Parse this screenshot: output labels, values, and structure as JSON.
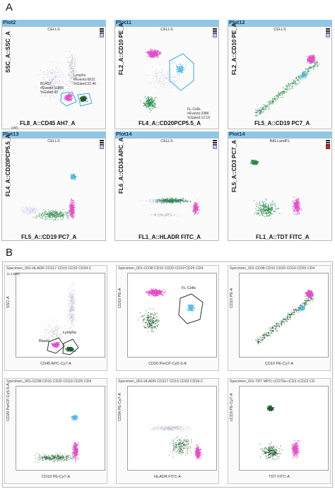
{
  "figure": {
    "panel_a_letter": "A",
    "panel_b_letter": "B"
  },
  "panel_a": {
    "plots": [
      {
        "title": "Plot2",
        "subtitle": "CELLS",
        "xlabel": "FL8_A::CD45 AH7_A",
        "ylabel": "SSC_A::SSC_A",
        "annotations": {
          "blast": "BLAST",
          "blast_events": "#Events:11856",
          "blast_gated": "%Gated:42",
          "lymphs": "Lymphs",
          "lymphs_events": "#Events:6622",
          "lymphs_gated": "%Gated:22.46",
          "ytick": "(xM)"
        }
      },
      {
        "title": "Plot11",
        "subtitle": "CELLS",
        "xlabel": "FL4_A::CD20PCP5.5_A",
        "ylabel": "FL2_A::CD10 PE_A",
        "annotations": {
          "fl_cells": "FL-Cells",
          "fl_events": "#Events:2386",
          "fl_gated": "%Gated:12.19"
        }
      },
      {
        "title": "Plot12",
        "subtitle": "CELLS",
        "xlabel": "FL5_A::CD19 PC7_A",
        "ylabel": "FL2_A::CD10 PE_A"
      },
      {
        "title": "Plot13",
        "subtitle": "CELLS",
        "xlabel": "FL5_A::CD19 PC7_A",
        "ylabel": "FL4_A::CD20PCP5.5_A"
      },
      {
        "title": "Plot14",
        "subtitle": "CELLS",
        "xlabel": "FL1_A::HLADR FITC_A",
        "ylabel": "FL6_A::CD34 APC_A"
      },
      {
        "title": "Plot14",
        "subtitle": "BALLandFL",
        "xlabel": "FL1_A::TDT FITC_A",
        "ylabel": "FL5_A::CD3 PC7_A"
      }
    ]
  },
  "panel_b": {
    "plots": [
      {
        "title": "Specimen_001-HLADR CD117 CD15 CD33 CD34 C",
        "xlabel": "CD45 APC-Cy7-A",
        "ylabel": "SSC-A",
        "annotations": {
          "blasts": "Blasts",
          "lymphs": "Lymphs",
          "ytick": "(x 1,000)"
        }
      },
      {
        "title": "Specimen_001-CD38 CD10 CD20 CD19 CD25 CD4",
        "xlabel": "CD20 PerCP-Cy5-5-A",
        "ylabel": "CD10 PE-A",
        "annotations": {
          "fl_cells": "FL Cells"
        }
      },
      {
        "title": "Specimen_001-CD38 CD10 CD20 CD19 CD25 CD4",
        "xlabel": "CD19 PE-Cy7-A",
        "ylabel": "CD10 PE-A"
      },
      {
        "title": "Specimen_001-CD38 CD10 CD20 CD19 CD25 CD4",
        "xlabel": "CD19 PE-Cy7-A",
        "ylabel": "CD20 PerCP-Cy5-5-A"
      },
      {
        "title": "Specimen_001-HLADR CD117 CD15 CD33 CD34 C",
        "xlabel": "HLADR FITC-A",
        "ylabel": "CD34 PE-Cy7-A"
      },
      {
        "title": "Specimen_001-TDT MPO cCD79a cCD3 cCD22 CD",
        "xlabel": "TDT FITC-A",
        "ylabel": "cCD3 PE-Cy7-A"
      }
    ]
  },
  "colors": {
    "header_blue": "#8fc8e6",
    "magenta": "#e050c8",
    "cyan": "#4fb8e0",
    "green": "#2a8a4a",
    "dark_green": "#1e5c2e",
    "grey": "#b8b8c8",
    "lavender": "#b8b8e0",
    "gate_blue": "#3aa8d8"
  }
}
